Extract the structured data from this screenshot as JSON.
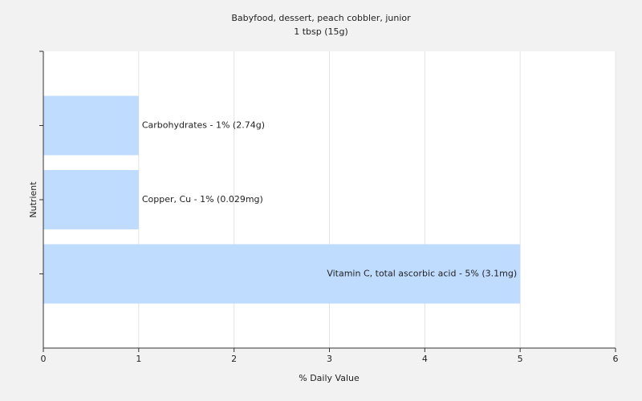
{
  "chart_data": {
    "type": "bar",
    "orientation": "horizontal",
    "title": "Babyfood, dessert, peach cobbler, junior",
    "subtitle": "1 tbsp (15g)",
    "xlabel": "% Daily Value",
    "ylabel": "Nutrient",
    "values": [
      1,
      1,
      5
    ],
    "value_labels": [
      "Carbohydrates - 1% (2.74g)",
      "Copper, Cu - 1% (0.029mg)",
      "Vitamin C, total ascorbic acid - 5% (3.1mg)"
    ],
    "color": "#bfdcff",
    "xlim": [
      0,
      6
    ],
    "xticks": [
      0,
      1,
      2,
      3,
      4,
      5,
      6
    ],
    "grid": true
  }
}
